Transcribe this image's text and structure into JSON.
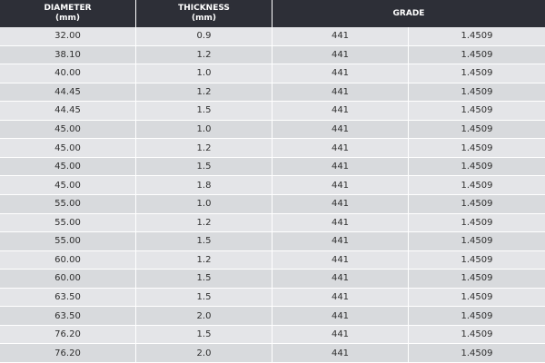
{
  "table": {
    "header": [
      [
        "DIAMETER",
        "(mm)"
      ],
      [
        "THICKNESS",
        "(mm)"
      ],
      [
        "GRADE"
      ]
    ],
    "rows": [
      [
        "32.00",
        "0.9",
        "441",
        "1.4509"
      ],
      [
        "38.10",
        "1.2",
        "441",
        "1.4509"
      ],
      [
        "40.00",
        "1.0",
        "441",
        "1.4509"
      ],
      [
        "44.45",
        "1.2",
        "441",
        "1.4509"
      ],
      [
        "44.45",
        "1.5",
        "441",
        "1.4509"
      ],
      [
        "45.00",
        "1.0",
        "441",
        "1.4509"
      ],
      [
        "45.00",
        "1.2",
        "441",
        "1.4509"
      ],
      [
        "45.00",
        "1.5",
        "441",
        "1.4509"
      ],
      [
        "45.00",
        "1.8",
        "441",
        "1.4509"
      ],
      [
        "55.00",
        "1.0",
        "441",
        "1.4509"
      ],
      [
        "55.00",
        "1.2",
        "441",
        "1.4509"
      ],
      [
        "55.00",
        "1.5",
        "441",
        "1.4509"
      ],
      [
        "60.00",
        "1.2",
        "441",
        "1.4509"
      ],
      [
        "60.00",
        "1.5",
        "441",
        "1.4509"
      ],
      [
        "63.50",
        "1.5",
        "441",
        "1.4509"
      ],
      [
        "63.50",
        "2.0",
        "441",
        "1.4509"
      ],
      [
        "76.20",
        "1.5",
        "441",
        "1.4509"
      ],
      [
        "76.20",
        "2.0",
        "441",
        "1.4509"
      ]
    ]
  }
}
